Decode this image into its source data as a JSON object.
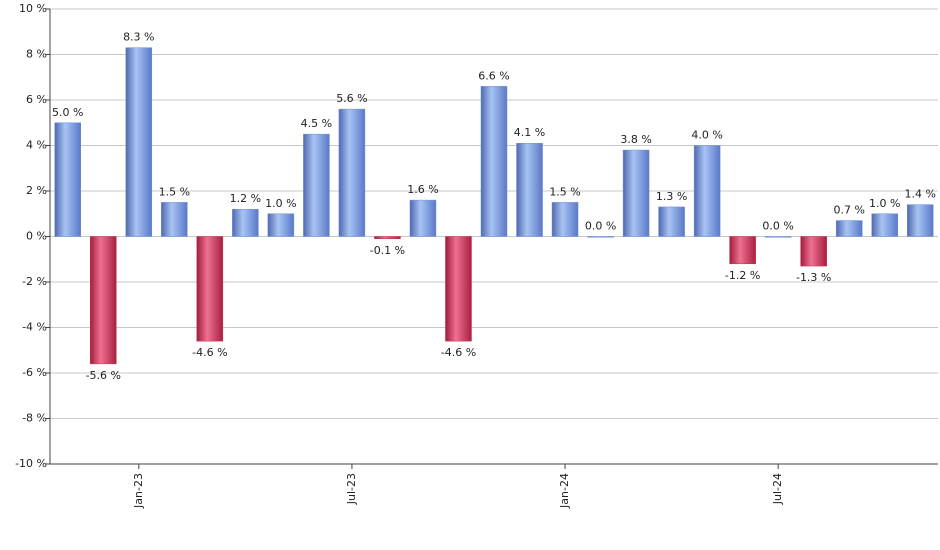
{
  "chart_data": {
    "type": "bar",
    "categories": [
      null,
      null,
      "Jan-23",
      null,
      null,
      null,
      null,
      null,
      "Jul-23",
      null,
      null,
      null,
      null,
      null,
      "Jan-24",
      null,
      null,
      null,
      null,
      null,
      "Jul-24",
      null,
      null,
      null,
      null
    ],
    "values": [
      5.0,
      -5.6,
      8.3,
      1.5,
      -4.6,
      1.2,
      1.0,
      4.5,
      5.6,
      -0.1,
      1.6,
      -4.6,
      6.6,
      4.1,
      1.5,
      0.0,
      3.8,
      1.3,
      4.0,
      -1.2,
      0.0,
      -1.3,
      0.7,
      1.0,
      1.4
    ],
    "value_labels": [
      "5.0 %",
      "-5.6 %",
      "8.3 %",
      "1.5 %",
      "-4.6 %",
      "1.2 %",
      "1.0 %",
      "4.5 %",
      "5.6 %",
      "-0.1 %",
      "1.6 %",
      "-4.6 %",
      "6.6 %",
      "4.1 %",
      "1.5 %",
      "0.0 %",
      "3.8 %",
      "1.3 %",
      "4.0 %",
      "-1.2 %",
      "0.0 %",
      "-1.3 %",
      "0.7 %",
      "1.0 %",
      "1.4 %"
    ],
    "positive_color": "#6f8fd6",
    "negative_color": "#c0304f",
    "ylim": [
      -10,
      10
    ],
    "yticks": [
      {
        "value": -10,
        "label": "-10 %"
      },
      {
        "value": -8,
        "label": "-8 %"
      },
      {
        "value": -6,
        "label": "-6 %"
      },
      {
        "value": -4,
        "label": "-4 %"
      },
      {
        "value": -2,
        "label": "-2 %"
      },
      {
        "value": 0,
        "label": "0 %"
      },
      {
        "value": 2,
        "label": "2 %"
      },
      {
        "value": 4,
        "label": "4 %"
      },
      {
        "value": 6,
        "label": "6 %"
      },
      {
        "value": 8,
        "label": "8 %"
      },
      {
        "value": 10,
        "label": "10 %"
      }
    ],
    "grid": true
  }
}
